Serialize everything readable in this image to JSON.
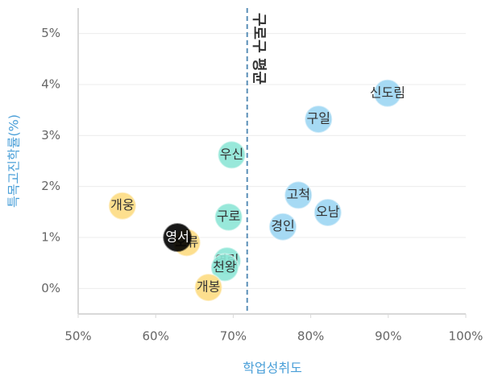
{
  "chart_data": {
    "type": "scatter",
    "x_label": "학업성취도",
    "y_label": "특목고진학률(%)",
    "xlim": [
      50,
      100
    ],
    "ylim": [
      -0.5,
      5.5
    ],
    "xticks": [
      {
        "value": 50,
        "label": "50%"
      },
      {
        "value": 60,
        "label": "60%"
      },
      {
        "value": 70,
        "label": "70%"
      },
      {
        "value": 80,
        "label": "80%"
      },
      {
        "value": 90,
        "label": "90%"
      },
      {
        "value": 100,
        "label": "100%"
      }
    ],
    "yticks": [
      {
        "value": 0,
        "label": "0%"
      },
      {
        "value": 1,
        "label": "1%"
      },
      {
        "value": 2,
        "label": "2%"
      },
      {
        "value": 3,
        "label": "3%"
      },
      {
        "value": 4,
        "label": "4%"
      },
      {
        "value": 5,
        "label": "5%"
      }
    ],
    "grid": true,
    "vline": {
      "x": 71.8,
      "label": "구로구 평균"
    },
    "points": [
      {
        "label": "신도림",
        "x": 89.9,
        "y": 3.83,
        "color": "#9dd6f3"
      },
      {
        "label": "구일",
        "x": 81.0,
        "y": 3.32,
        "color": "#9dd6f3"
      },
      {
        "label": "우신",
        "x": 69.8,
        "y": 2.62,
        "color": "#8de6d6"
      },
      {
        "label": "고척",
        "x": 78.4,
        "y": 1.83,
        "color": "#9dd6f3"
      },
      {
        "label": "오남",
        "x": 82.2,
        "y": 1.49,
        "color": "#9dd6f3"
      },
      {
        "label": "구로",
        "x": 69.4,
        "y": 1.4,
        "color": "#8de6d6"
      },
      {
        "label": "경인",
        "x": 76.4,
        "y": 1.21,
        "color": "#9dd6f3"
      },
      {
        "label": "개웅",
        "x": 55.7,
        "y": 1.62,
        "color": "#fddc82"
      },
      {
        "label": "오류",
        "x": 64.0,
        "y": 0.9,
        "color": "#fddc82"
      },
      {
        "label": "영서",
        "x": 62.8,
        "y": 1.0,
        "color": "#000000"
      },
      {
        "label": "영림",
        "x": 69.2,
        "y": 0.54,
        "color": "#8de6d6"
      },
      {
        "label": "천왕",
        "x": 68.9,
        "y": 0.41,
        "color": "#8de6d6"
      },
      {
        "label": "개봉",
        "x": 66.8,
        "y": 0.02,
        "color": "#fddc82"
      }
    ]
  }
}
